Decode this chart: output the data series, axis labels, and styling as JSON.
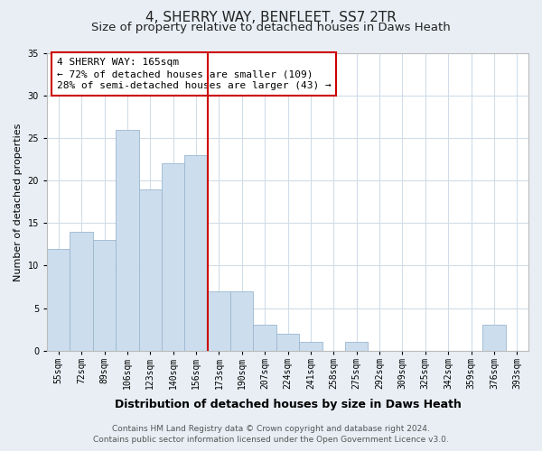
{
  "title": "4, SHERRY WAY, BENFLEET, SS7 2TR",
  "subtitle": "Size of property relative to detached houses in Daws Heath",
  "xlabel": "Distribution of detached houses by size in Daws Heath",
  "ylabel": "Number of detached properties",
  "bar_color": "#ccdded",
  "bar_edge_color": "#9ab8d0",
  "background_color": "#e8eef4",
  "plot_bg_color": "#ffffff",
  "categories": [
    "55sqm",
    "72sqm",
    "89sqm",
    "106sqm",
    "123sqm",
    "140sqm",
    "156sqm",
    "173sqm",
    "190sqm",
    "207sqm",
    "224sqm",
    "241sqm",
    "258sqm",
    "275sqm",
    "292sqm",
    "309sqm",
    "325sqm",
    "342sqm",
    "359sqm",
    "376sqm",
    "393sqm"
  ],
  "values": [
    12,
    14,
    13,
    26,
    19,
    22,
    23,
    7,
    7,
    3,
    2,
    1,
    0,
    1,
    0,
    0,
    0,
    0,
    0,
    3,
    0
  ],
  "vline_color": "#cc0000",
  "vline_pos": 7.0,
  "annotation_title": "4 SHERRY WAY: 165sqm",
  "annotation_line1": "← 72% of detached houses are smaller (109)",
  "annotation_line2": "28% of semi-detached houses are larger (43) →",
  "annotation_box_color": "#ffffff",
  "annotation_box_edge": "#cc0000",
  "ylim": [
    0,
    35
  ],
  "yticks": [
    0,
    5,
    10,
    15,
    20,
    25,
    30,
    35
  ],
  "grid_color": "#d0dde8",
  "footer_line1": "Contains HM Land Registry data © Crown copyright and database right 2024.",
  "footer_line2": "Contains public sector information licensed under the Open Government Licence v3.0.",
  "title_fontsize": 11,
  "subtitle_fontsize": 9.5,
  "xlabel_fontsize": 9,
  "ylabel_fontsize": 8,
  "tick_fontsize": 7,
  "annotation_fontsize": 8,
  "footer_fontsize": 6.5
}
